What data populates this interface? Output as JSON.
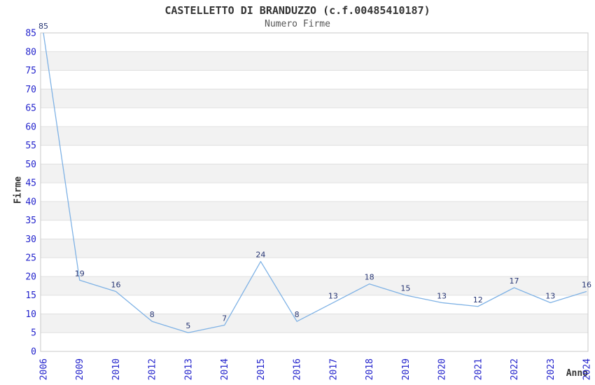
{
  "header": {
    "title": "CASTELLETTO DI BRANDUZZO (c.f.00485410187)",
    "subtitle": "Numero Firme"
  },
  "chart_data": {
    "type": "line",
    "title": "CASTELLETTO DI BRANDUZZO (c.f.00485410187)",
    "subtitle": "Numero Firme",
    "xlabel": "Anno",
    "ylabel": "Firme",
    "categories": [
      "2006",
      "2009",
      "2010",
      "2012",
      "2013",
      "2014",
      "2015",
      "2016",
      "2017",
      "2018",
      "2019",
      "2020",
      "2021",
      "2022",
      "2023",
      "2024"
    ],
    "values": [
      85,
      19,
      16,
      8,
      5,
      7,
      24,
      8,
      13,
      18,
      15,
      13,
      12,
      17,
      13,
      16
    ],
    "ylim": [
      0,
      85
    ],
    "ytick_step": 5,
    "grid": "horizontal-bands",
    "legend_position": "none",
    "colors": {
      "line": "#7fb2e5",
      "tick_label": "#2323cc",
      "data_label": "#263573",
      "band": "#f2f2f2",
      "gridline": "#e0e0e0",
      "plot_border": "#c8c8c8",
      "title": "#333333",
      "subtitle": "#555555",
      "background": "#ffffff"
    }
  }
}
